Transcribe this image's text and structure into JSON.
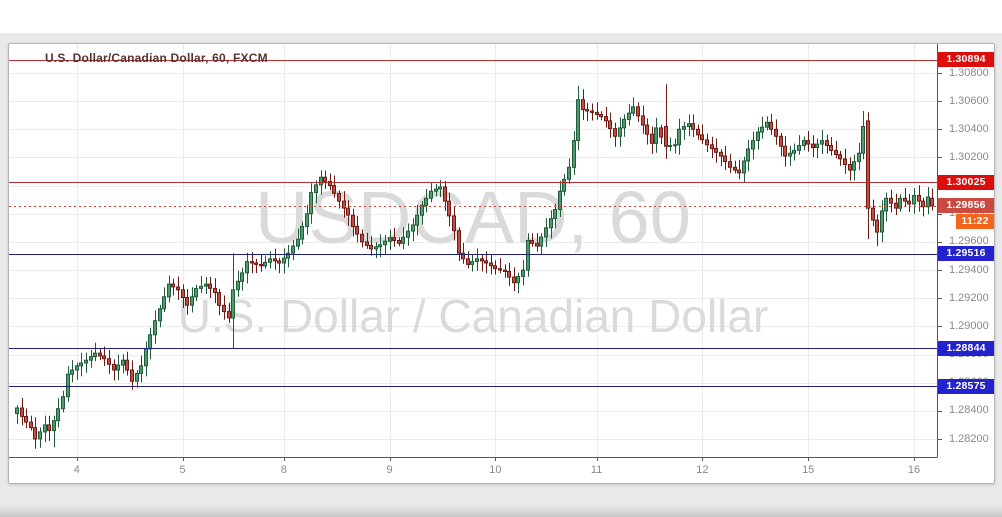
{
  "page": {
    "title": "U.S. Dollar/Canadian Dollar, 60, FXCM"
  },
  "watermark": {
    "line1": "USDCAD, 60",
    "line2": "U.S. Dollar / Canadian Dollar"
  },
  "chart_data": {
    "type": "candlestick",
    "symbol": "USDCAD",
    "interval": "60",
    "exchange": "FXCM",
    "slots": 200,
    "y_axis": {
      "side": "right",
      "grid": true,
      "price_min": 1.28072,
      "price_max": 1.31006,
      "ticks": [
        "1.30800",
        "1.30600",
        "1.30400",
        "1.30200",
        "1.30000",
        "1.29800",
        "1.29600",
        "1.29400",
        "1.29200",
        "1.29000",
        "1.28800",
        "1.28600",
        "1.28400",
        "1.28200"
      ],
      "tick_values": [
        1.308,
        1.306,
        1.304,
        1.302,
        1.3,
        1.298,
        1.296,
        1.294,
        1.292,
        1.29,
        1.288,
        1.286,
        1.284,
        1.282
      ]
    },
    "x_axis": {
      "side": "bottom",
      "grid": true,
      "ticks": [
        {
          "label": "4",
          "slot": 13
        },
        {
          "label": "5",
          "slot": 36
        },
        {
          "label": "8",
          "slot": 58
        },
        {
          "label": "9",
          "slot": 81
        },
        {
          "label": "10",
          "slot": 104
        },
        {
          "label": "11",
          "slot": 126
        },
        {
          "label": "12",
          "slot": 149
        },
        {
          "label": "15",
          "slot": 172
        },
        {
          "label": "16",
          "slot": 195
        }
      ]
    },
    "price_lines": [
      {
        "label": "1.30894",
        "price": 1.30894,
        "role": "resistance",
        "style": "solid",
        "line_color": "#b82e2e",
        "badge_color": "#dc0d0d"
      },
      {
        "label": "1.30025",
        "price": 1.30025,
        "role": "resistance",
        "style": "solid",
        "line_color": "#b82e2e",
        "badge_color": "#dc0d0d"
      },
      {
        "label": "1.29516",
        "price": 1.29516,
        "role": "support",
        "style": "solid",
        "line_color": "#1f1f7a",
        "badge_color": "#2323cd"
      },
      {
        "label": "1.28844",
        "price": 1.28844,
        "role": "support",
        "style": "solid",
        "line_color": "#1f1f7a",
        "badge_color": "#2323cd"
      },
      {
        "label": "1.28575",
        "price": 1.28575,
        "role": "support",
        "style": "solid",
        "line_color": "#1f1f7a",
        "badge_color": "#2323cd"
      }
    ],
    "last_price": {
      "label": "1.29856",
      "price": 1.29856,
      "countdown": "11:22",
      "direction": "down",
      "line_color": "#cc4532",
      "badge_color": "#ca4a41",
      "countdown_color": "#f3641e"
    },
    "path_close": [
      [
        0,
        1.2842
      ],
      [
        1,
        1.2836
      ],
      [
        3,
        1.2828
      ],
      [
        4,
        1.282
      ],
      [
        6,
        1.283
      ],
      [
        7,
        1.2826
      ],
      [
        8,
        1.2833
      ],
      [
        10,
        1.285
      ],
      [
        11,
        1.2866
      ],
      [
        13,
        1.2872
      ],
      [
        15,
        1.2876
      ],
      [
        17,
        1.2881
      ],
      [
        19,
        1.2877
      ],
      [
        21,
        1.2869
      ],
      [
        23,
        1.2876
      ],
      [
        24,
        1.2869
      ],
      [
        25,
        1.2861
      ],
      [
        27,
        1.2872
      ],
      [
        28,
        1.2884
      ],
      [
        30,
        1.2904
      ],
      [
        32,
        1.2921
      ],
      [
        33,
        1.293
      ],
      [
        35,
        1.2926
      ],
      [
        37,
        1.2915
      ],
      [
        39,
        1.2927
      ],
      [
        41,
        1.293
      ],
      [
        43,
        1.2924
      ],
      [
        44,
        1.2915
      ],
      [
        46,
        1.2906
      ],
      [
        47,
        1.2926
      ],
      [
        49,
        1.2938
      ],
      [
        50,
        1.2946
      ],
      [
        53,
        1.2943
      ],
      [
        55,
        1.2948
      ],
      [
        57,
        1.2945
      ],
      [
        59,
        1.2952
      ],
      [
        61,
        1.2962
      ],
      [
        63,
        1.298
      ],
      [
        64,
        1.2995
      ],
      [
        66,
        1.3006
      ],
      [
        68,
        1.3
      ],
      [
        70,
        1.2989
      ],
      [
        72,
        1.2979
      ],
      [
        73,
        1.2971
      ],
      [
        75,
        1.296
      ],
      [
        77,
        1.2955
      ],
      [
        79,
        1.2958
      ],
      [
        81,
        1.2963
      ],
      [
        83,
        1.2959
      ],
      [
        86,
        1.2972
      ],
      [
        88,
        1.2986
      ],
      [
        90,
        1.2996
      ],
      [
        92,
        1.2999
      ],
      [
        93,
        1.2989
      ],
      [
        95,
        1.2968
      ],
      [
        96,
        1.2952
      ],
      [
        98,
        1.2944
      ],
      [
        100,
        1.2948
      ],
      [
        102,
        1.2945
      ],
      [
        104,
        1.2941
      ],
      [
        106,
        1.2939
      ],
      [
        108,
        1.2931
      ],
      [
        110,
        1.294
      ],
      [
        111,
        1.2961
      ],
      [
        113,
        1.2957
      ],
      [
        115,
        1.297
      ],
      [
        117,
        1.2983
      ],
      [
        118,
        1.2996
      ],
      [
        120,
        1.3013
      ],
      [
        121,
        1.3032
      ],
      [
        122,
        1.3061
      ],
      [
        123,
        1.3054
      ],
      [
        125,
        1.3052
      ],
      [
        127,
        1.3049
      ],
      [
        128,
        1.3046
      ],
      [
        130,
        1.3035
      ],
      [
        132,
        1.3047
      ],
      [
        134,
        1.3056
      ],
      [
        136,
        1.3043
      ],
      [
        138,
        1.303
      ],
      [
        139,
        1.3041
      ],
      [
        141,
        1.3028
      ],
      [
        143,
        1.3029
      ],
      [
        144,
        1.304
      ],
      [
        146,
        1.3044
      ],
      [
        148,
        1.3036
      ],
      [
        150,
        1.3029
      ],
      [
        153,
        1.3021
      ],
      [
        155,
        1.3013
      ],
      [
        157,
        1.3009
      ],
      [
        159,
        1.3026
      ],
      [
        161,
        1.3038
      ],
      [
        163,
        1.3045
      ],
      [
        165,
        1.3035
      ],
      [
        167,
        1.3021
      ],
      [
        169,
        1.3025
      ],
      [
        171,
        1.3032
      ],
      [
        173,
        1.3027
      ],
      [
        175,
        1.3032
      ],
      [
        177,
        1.3025
      ],
      [
        179,
        1.3019
      ],
      [
        181,
        1.3011
      ],
      [
        183,
        1.3023
      ],
      [
        184,
        1.3042
      ],
      [
        185,
        1.2984
      ],
      [
        187,
        1.2967
      ],
      [
        188,
        1.2982
      ],
      [
        189,
        1.2991
      ],
      [
        191,
        1.2984
      ],
      [
        192,
        1.2991
      ],
      [
        194,
        1.2987
      ],
      [
        195,
        1.2993
      ],
      [
        197,
        1.2985
      ],
      [
        198,
        1.2992
      ],
      [
        199,
        1.29856
      ]
    ],
    "candle_overrides": [
      {
        "slot": 4,
        "low": 1.2813
      },
      {
        "slot": 8,
        "low": 1.2814
      },
      {
        "slot": 25,
        "low": 1.2855
      },
      {
        "slot": 47,
        "open": 1.2906,
        "close": 1.2926,
        "high": 1.2952,
        "low": 1.2884
      },
      {
        "slot": 66,
        "high": 1.3011
      },
      {
        "slot": 92,
        "high": 1.3004
      },
      {
        "slot": 108,
        "low": 1.2925
      },
      {
        "slot": 122,
        "high": 1.3071
      },
      {
        "slot": 141,
        "open": 1.3042,
        "close": 1.3028,
        "high": 1.3072,
        "low": 1.3019
      },
      {
        "slot": 184,
        "high": 1.3053
      },
      {
        "slot": 185,
        "open": 1.3046,
        "close": 1.2984,
        "high": 1.3052,
        "low": 1.2962
      },
      {
        "slot": 187,
        "low": 1.2957
      },
      {
        "slot": 199,
        "open": 1.2991,
        "close": 1.29856
      }
    ],
    "colors": {
      "up_fill": "#4f9a6e",
      "up_border": "#1f5c39",
      "down_fill": "#bf4e46",
      "down_border": "#6e1a12",
      "grid": "#ececec",
      "axis_text": "#8a8a8a",
      "plot_border": "#555555",
      "watermark": "#dadada",
      "title_text": "#5a3434"
    }
  }
}
